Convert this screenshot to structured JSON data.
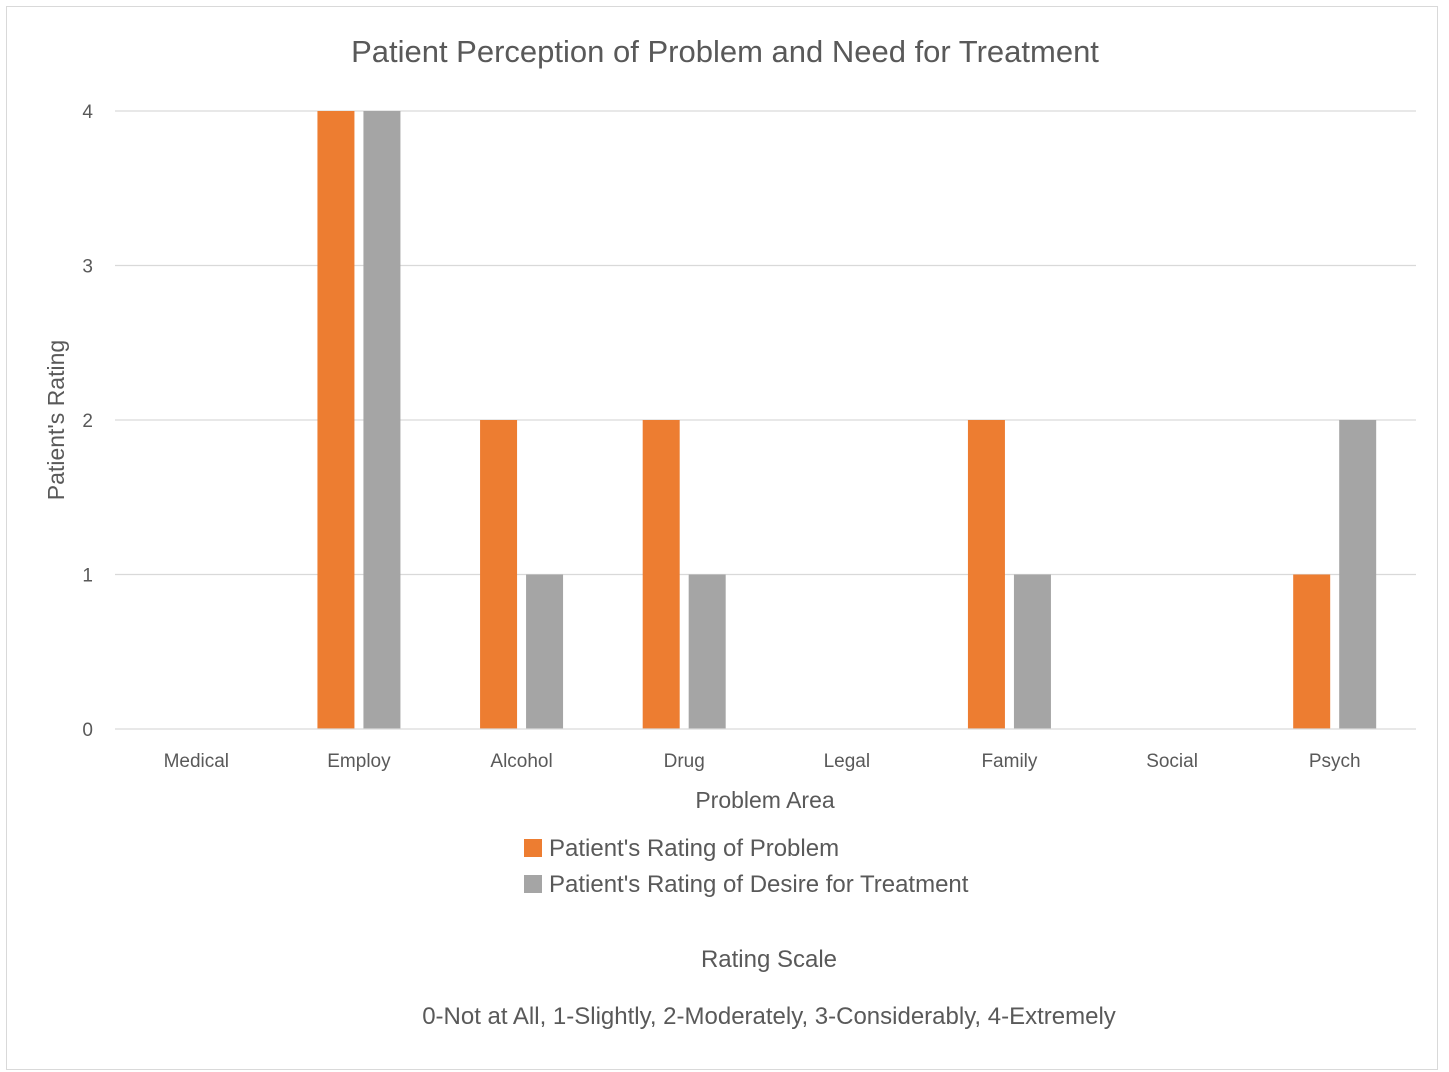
{
  "chart_data": {
    "type": "bar",
    "title": "Patient Perception of Problem and Need for Treatment",
    "xlabel": "Problem Area",
    "ylabel": "Patient's Rating",
    "categories": [
      "Medical",
      "Employ",
      "Alcohol",
      "Drug",
      "Legal",
      "Family",
      "Social",
      "Psych"
    ],
    "series": [
      {
        "name": "Patient's Rating of Problem",
        "color": "#ED7D31",
        "values": [
          0,
          4,
          2,
          2,
          0,
          2,
          0,
          1
        ]
      },
      {
        "name": "Patient's Rating of Desire for Treatment",
        "color": "#A5A5A5",
        "values": [
          0,
          4,
          1,
          1,
          0,
          1,
          0,
          2
        ]
      }
    ],
    "ylim": [
      0,
      4
    ],
    "yticks": [
      "0",
      "1",
      "2",
      "3",
      "4"
    ],
    "grid": true,
    "legend_position": "bottom"
  },
  "notes": {
    "scale_heading": "Rating Scale",
    "scale_text": "0-Not at All, 1-Slightly, 2-Moderately, 3-Considerably, 4-Extremely"
  }
}
